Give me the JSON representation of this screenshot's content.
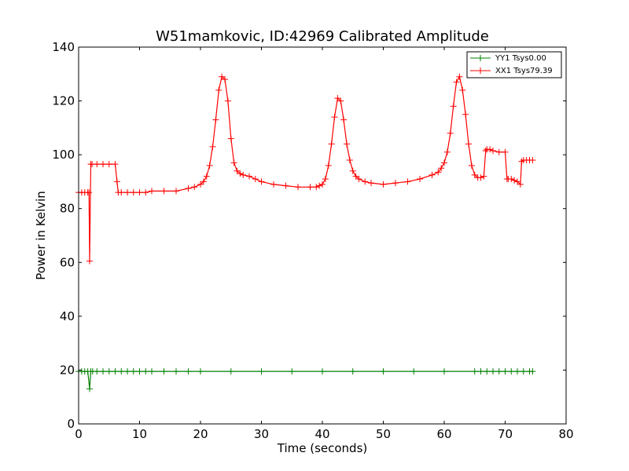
{
  "chart_data": {
    "type": "line",
    "title": "W51mamkovic, ID:42969 Calibrated Amplitude",
    "xlabel": "Time (seconds)",
    "ylabel": "Power in Kelvin",
    "xlim": [
      0,
      80
    ],
    "ylim": [
      0,
      140
    ],
    "xticks": [
      "0",
      "10",
      "20",
      "30",
      "40",
      "50",
      "60",
      "70",
      "80"
    ],
    "yticks": [
      "0",
      "20",
      "40",
      "60",
      "80",
      "100",
      "120",
      "140"
    ],
    "grid": false,
    "legend_position": "top-right",
    "series": [
      {
        "name": "YY1 Tsys0.00",
        "color": "#008000",
        "marker": "plus",
        "x": [
          0,
          0.5,
          1,
          1.5,
          1.8,
          2,
          2.3,
          3,
          4,
          5,
          6,
          7,
          8,
          9,
          10,
          11,
          12,
          14,
          16,
          18,
          20,
          25,
          30,
          35,
          40,
          45,
          50,
          55,
          60,
          65,
          66,
          67,
          68,
          69,
          70,
          71,
          72,
          73,
          74,
          74.5
        ],
        "y": [
          19.5,
          19.5,
          19.5,
          19.5,
          13,
          19.5,
          19.5,
          19.5,
          19.5,
          19.5,
          19.5,
          19.5,
          19.5,
          19.5,
          19.5,
          19.5,
          19.5,
          19.5,
          19.5,
          19.5,
          19.5,
          19.5,
          19.5,
          19.5,
          19.5,
          19.5,
          19.5,
          19.5,
          19.5,
          19.5,
          19.5,
          19.5,
          19.5,
          19.5,
          19.5,
          19.5,
          19.5,
          19.5,
          19.5,
          19.5
        ]
      },
      {
        "name": "XX1 Tsys79.39",
        "color": "#ff0000",
        "marker": "plus",
        "x": [
          0,
          0.5,
          1,
          1.5,
          1.7,
          1.8,
          2,
          2.2,
          3,
          4,
          5,
          6,
          6.3,
          6.5,
          7,
          8,
          9,
          10,
          11,
          12,
          14,
          16,
          18,
          19,
          20,
          20.5,
          21,
          21.5,
          22,
          22.5,
          23,
          23.5,
          24,
          24.5,
          25,
          25.5,
          26,
          26.5,
          27,
          28,
          29,
          30,
          32,
          34,
          36,
          38,
          39,
          39.5,
          40,
          40.5,
          41,
          41.5,
          42,
          42.5,
          43,
          43.5,
          44,
          44.5,
          45,
          45.5,
          46,
          47,
          48,
          50,
          52,
          54,
          56,
          58,
          59,
          59.5,
          60,
          60.5,
          61,
          61.5,
          62,
          62.5,
          63,
          63.5,
          64,
          64.5,
          65,
          65.5,
          66,
          66.5,
          66.8,
          67,
          67.5,
          68,
          69,
          70,
          70.3,
          70.5,
          71,
          71.5,
          72,
          72.5,
          72.7,
          73,
          73.5,
          74,
          74.5
        ],
        "y": [
          86,
          86,
          86,
          86,
          86,
          60.5,
          96.5,
          96.5,
          96.5,
          96.5,
          96.5,
          96.5,
          90,
          86,
          86,
          86,
          86,
          86,
          86,
          86.5,
          86.5,
          86.5,
          87.5,
          88,
          89,
          90,
          92,
          96,
          103,
          113,
          124,
          129,
          128,
          120,
          106,
          97,
          94,
          93,
          92.5,
          92,
          91,
          90,
          89,
          88.5,
          88,
          88,
          88,
          88.5,
          89,
          91,
          96,
          104,
          114,
          121,
          120,
          113,
          104,
          98,
          94,
          92,
          91,
          90,
          89.5,
          89,
          89.5,
          90,
          91,
          92.5,
          93.5,
          95,
          97,
          101,
          108,
          118,
          127,
          129,
          124,
          115,
          104,
          96,
          92.5,
          91.5,
          91.5,
          92,
          101.5,
          102,
          102,
          101.5,
          101,
          101,
          91,
          91,
          91,
          90.5,
          90,
          89,
          97.5,
          98,
          98,
          98,
          98
        ]
      }
    ]
  }
}
